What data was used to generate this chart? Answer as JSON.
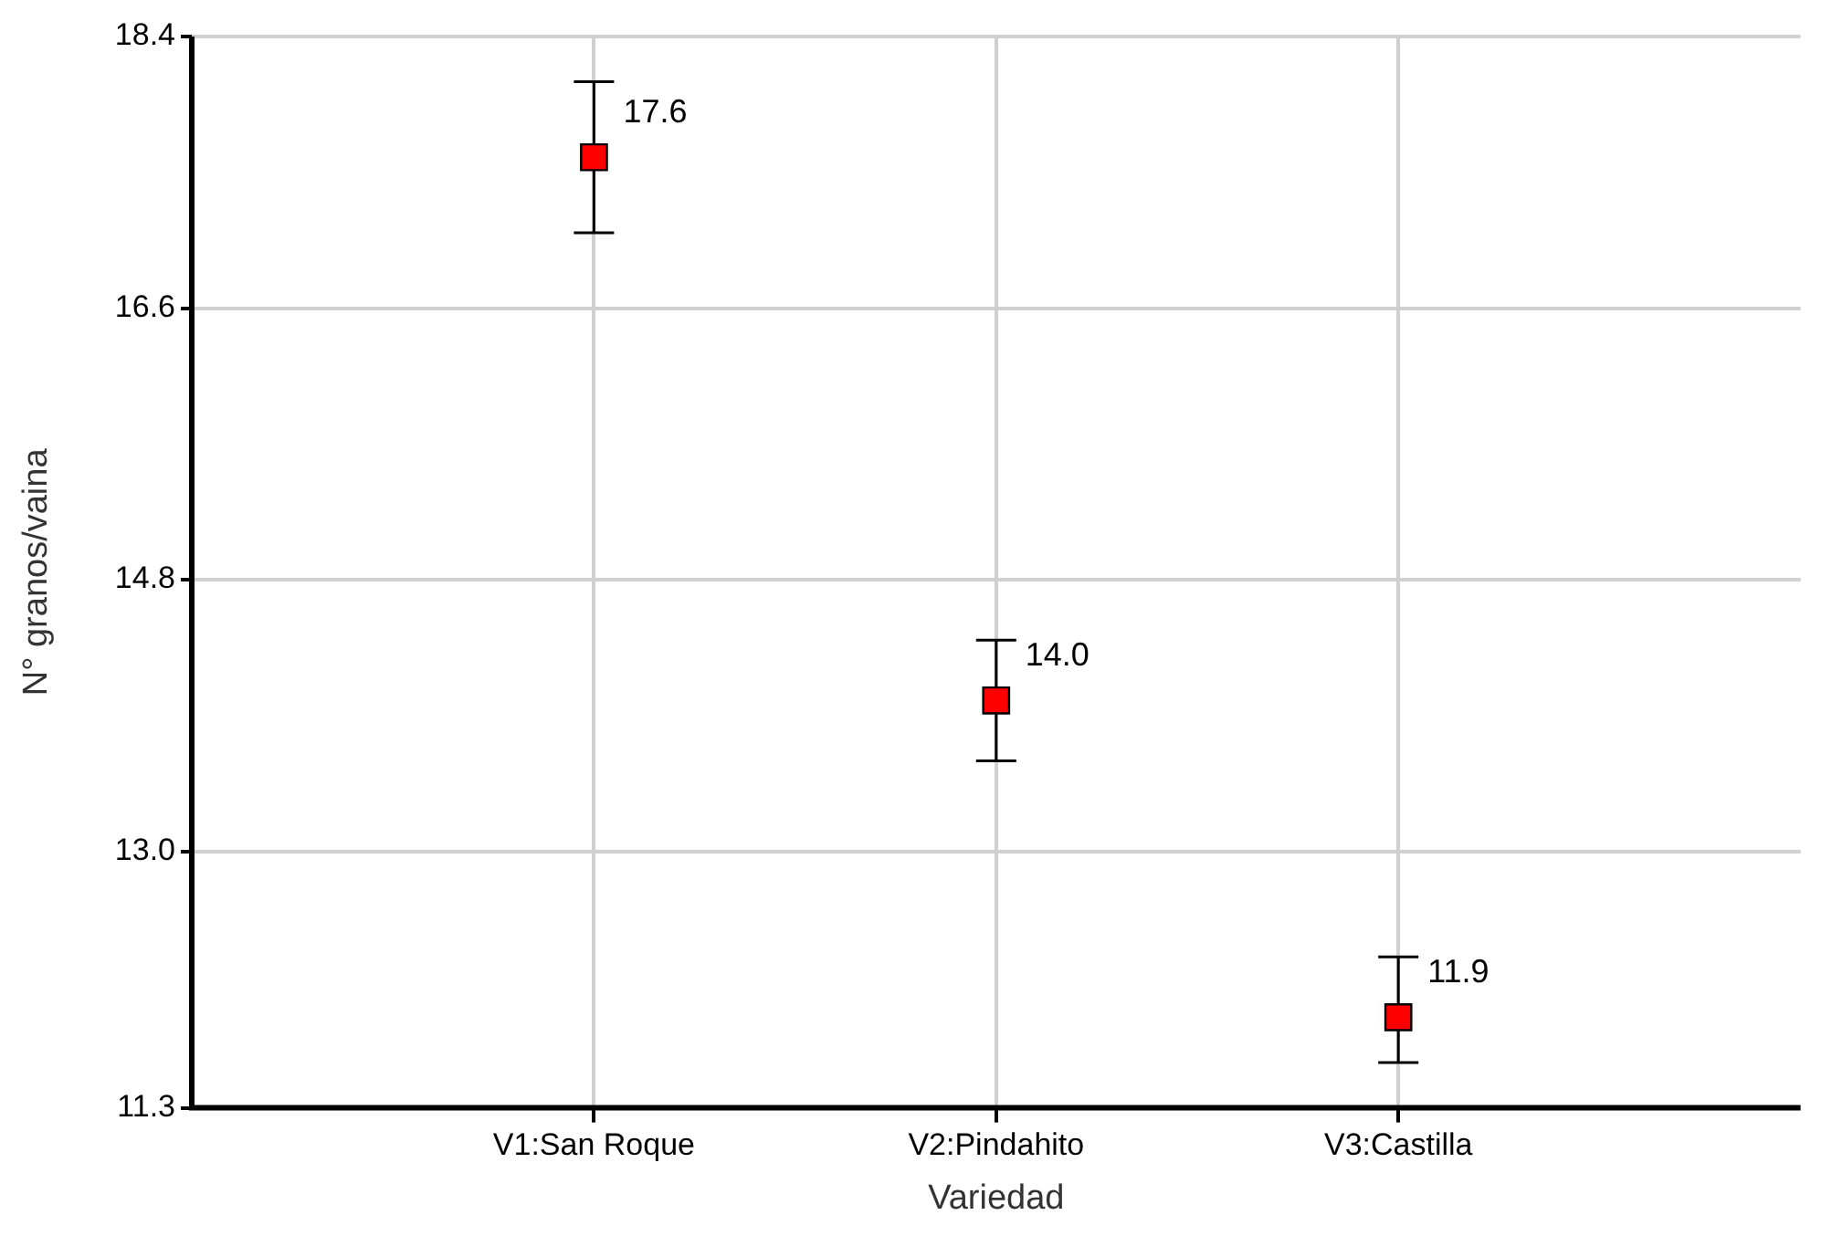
{
  "chart_data": {
    "type": "scatter",
    "xlabel": "Variedad",
    "ylabel": "N° granos/vaina",
    "categories": [
      "V1:San Roque",
      "V2:Pindahito",
      "V3:Castilla"
    ],
    "series": [
      {
        "color": "#ff0000",
        "values": [
          17.6,
          14.0,
          11.9
        ],
        "errors": [
          [
            17.1,
            18.1
          ],
          [
            13.6,
            14.4
          ],
          [
            11.6,
            12.3
          ]
        ],
        "value_labels": [
          "17.6",
          "14.0",
          "11.9"
        ]
      }
    ],
    "ylim": [
      11.3,
      18.4
    ],
    "yticks": [
      {
        "value": 11.3,
        "label": "11.3"
      },
      {
        "value": 13,
        "label": "13.0"
      },
      {
        "value": 14.8,
        "label": "14.8"
      },
      {
        "value": 16.6,
        "label": "16.6"
      },
      {
        "value": 18.4,
        "label": "18.4"
      }
    ],
    "grid": true,
    "marker": "square",
    "legend": false
  }
}
